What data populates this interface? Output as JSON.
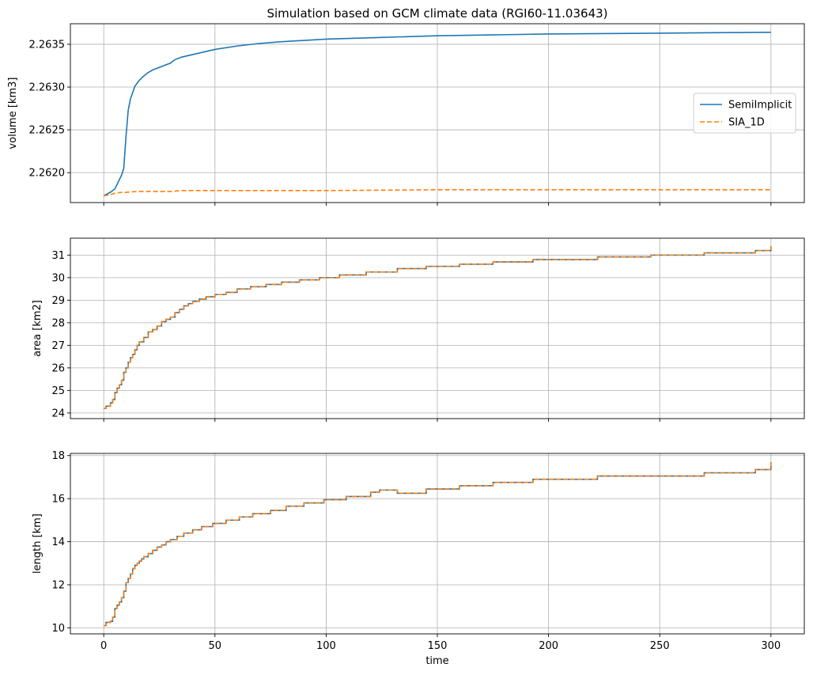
{
  "chart_data": {
    "type": "line",
    "title": "Simulation based on GCM climate data (RGI60-11.03643)",
    "xlabel": "time",
    "xlim": [
      -15,
      315
    ],
    "xticks": [
      0,
      50,
      100,
      150,
      200,
      250,
      300
    ],
    "xtick_labels": [
      "0",
      "50",
      "100",
      "150",
      "200",
      "250",
      "300"
    ],
    "grid": true,
    "colors": {
      "SemiImplicit": "#1f77b4",
      "SIA_1D": "#ff7f0e"
    },
    "panels": [
      {
        "id": "volume",
        "ylabel": "volume [km3]",
        "ylim": [
          2.26165,
          2.26374
        ],
        "yticks": [
          2.262,
          2.2625,
          2.263,
          2.2635
        ],
        "ytick_labels": [
          "2.2620",
          "2.2625",
          "2.2630",
          "2.2635"
        ],
        "legend": {
          "position": "center-right",
          "entries": [
            "SemiImplicit",
            "SIA_1D"
          ]
        },
        "series": [
          {
            "name": "SemiImplicit",
            "style": "solid",
            "x": [
              0,
              3,
              5,
              8,
              9,
              10,
              11,
              12,
              14,
              16,
              18,
              20,
              22,
              25,
              28,
              30,
              32,
              35,
              40,
              45,
              50,
              60,
              70,
              80,
              100,
              125,
              150,
              175,
              200,
              250,
              300
            ],
            "y": [
              2.26173,
              2.26177,
              2.26181,
              2.26197,
              2.26205,
              2.26242,
              2.26273,
              2.26286,
              2.26301,
              2.26308,
              2.26313,
              2.26317,
              2.2632,
              2.26323,
              2.26326,
              2.26328,
              2.26332,
              2.26335,
              2.26338,
              2.26341,
              2.26344,
              2.26348,
              2.26351,
              2.26353,
              2.26356,
              2.26358,
              2.2636,
              2.26361,
              2.26362,
              2.26363,
              2.26364
            ]
          },
          {
            "name": "SIA_1D",
            "style": "dashed",
            "x": [
              0,
              3,
              5,
              8,
              10,
              15,
              20,
              30,
              35,
              50,
              100,
              150,
              200,
              250,
              300
            ],
            "y": [
              2.26173,
              2.26174,
              2.26176,
              2.26177,
              2.26177,
              2.26178,
              2.26178,
              2.26178,
              2.26179,
              2.26179,
              2.26179,
              2.2618,
              2.2618,
              2.2618,
              2.2618
            ]
          }
        ]
      },
      {
        "id": "area",
        "ylabel": "area [km2]",
        "ylim": [
          23.75,
          31.75
        ],
        "yticks": [
          24,
          25,
          26,
          27,
          28,
          29,
          30,
          31
        ],
        "ytick_labels": [
          "24",
          "25",
          "26",
          "27",
          "28",
          "29",
          "30",
          "31"
        ],
        "series": [
          {
            "name": "SemiImplicit",
            "style": "solid",
            "stepped": true,
            "x": [
              0,
              1,
              3,
              4,
              5,
              6,
              7,
              8,
              9,
              10,
              11,
              12,
              13,
              14,
              15,
              16,
              18,
              20,
              22,
              24,
              26,
              28,
              30,
              32,
              34,
              36,
              38,
              40,
              43,
              46,
              50,
              55,
              60,
              66,
              73,
              80,
              88,
              97,
              106,
              118,
              132,
              145,
              160,
              175,
              193,
              222,
              246,
              270,
              293,
              300
            ],
            "y": [
              24.2,
              24.3,
              24.45,
              24.6,
              24.9,
              25.1,
              25.25,
              25.45,
              25.8,
              26.0,
              26.25,
              26.45,
              26.6,
              26.8,
              27.0,
              27.15,
              27.35,
              27.6,
              27.7,
              27.85,
              28.05,
              28.15,
              28.25,
              28.45,
              28.6,
              28.75,
              28.85,
              28.95,
              29.05,
              29.15,
              29.25,
              29.35,
              29.5,
              29.6,
              29.7,
              29.8,
              29.9,
              30.0,
              30.12,
              30.25,
              30.4,
              30.5,
              30.6,
              30.7,
              30.8,
              30.92,
              31.0,
              31.1,
              31.2,
              31.4
            ]
          },
          {
            "name": "SIA_1D",
            "style": "dashed",
            "stepped": true,
            "x": [
              0,
              1,
              3,
              4,
              5,
              6,
              7,
              8,
              9,
              10,
              11,
              12,
              13,
              14,
              15,
              16,
              18,
              20,
              22,
              24,
              26,
              28,
              30,
              32,
              34,
              36,
              38,
              40,
              43,
              46,
              50,
              55,
              60,
              66,
              73,
              80,
              88,
              97,
              106,
              118,
              132,
              145,
              160,
              175,
              193,
              222,
              246,
              270,
              293,
              300
            ],
            "y": [
              24.2,
              24.3,
              24.45,
              24.6,
              24.9,
              25.1,
              25.25,
              25.45,
              25.8,
              26.0,
              26.25,
              26.45,
              26.6,
              26.8,
              27.0,
              27.15,
              27.35,
              27.6,
              27.7,
              27.85,
              28.05,
              28.15,
              28.25,
              28.45,
              28.6,
              28.75,
              28.85,
              28.95,
              29.05,
              29.15,
              29.25,
              29.35,
              29.5,
              29.6,
              29.7,
              29.8,
              29.9,
              30.0,
              30.12,
              30.25,
              30.4,
              30.5,
              30.6,
              30.7,
              30.8,
              30.92,
              31.0,
              31.1,
              31.2,
              31.4
            ]
          }
        ]
      },
      {
        "id": "length",
        "ylabel": "length [km]",
        "ylim": [
          9.72,
          18.1
        ],
        "yticks": [
          10,
          12,
          14,
          16,
          18
        ],
        "ytick_labels": [
          "10",
          "12",
          "14",
          "16",
          "18"
        ],
        "series": [
          {
            "name": "SemiImplicit",
            "style": "solid",
            "stepped": true,
            "x": [
              0,
              1,
              3,
              4,
              5,
              6,
              7,
              8,
              9,
              10,
              11,
              12,
              13,
              14,
              15,
              16,
              17,
              18,
              20,
              22,
              24,
              26,
              28,
              30,
              33,
              36,
              40,
              44,
              49,
              55,
              61,
              67,
              75,
              82,
              90,
              99,
              109,
              120,
              124,
              132,
              145,
              160,
              175,
              193,
              222,
              246,
              270,
              293,
              300
            ],
            "y": [
              10.1,
              10.25,
              10.3,
              10.5,
              10.9,
              11.05,
              11.2,
              11.4,
              11.7,
              12.1,
              12.3,
              12.5,
              12.75,
              12.9,
              13.0,
              13.1,
              13.2,
              13.3,
              13.45,
              13.6,
              13.75,
              13.85,
              14.0,
              14.1,
              14.25,
              14.4,
              14.55,
              14.7,
              14.85,
              15.0,
              15.15,
              15.3,
              15.45,
              15.65,
              15.8,
              15.95,
              16.1,
              16.3,
              16.4,
              16.25,
              16.45,
              16.6,
              16.75,
              16.9,
              17.05,
              17.05,
              17.2,
              17.35,
              17.7
            ]
          },
          {
            "name": "SIA_1D",
            "style": "dashed",
            "stepped": true,
            "x": [
              0,
              1,
              3,
              4,
              5,
              6,
              7,
              8,
              9,
              10,
              11,
              12,
              13,
              14,
              15,
              16,
              17,
              18,
              20,
              22,
              24,
              26,
              28,
              30,
              33,
              36,
              40,
              44,
              49,
              55,
              61,
              67,
              75,
              82,
              90,
              99,
              109,
              120,
              124,
              132,
              145,
              160,
              175,
              193,
              222,
              246,
              270,
              293,
              300
            ],
            "y": [
              10.1,
              10.25,
              10.3,
              10.5,
              10.9,
              11.05,
              11.2,
              11.4,
              11.7,
              12.1,
              12.3,
              12.5,
              12.75,
              12.9,
              13.0,
              13.1,
              13.2,
              13.3,
              13.45,
              13.6,
              13.75,
              13.85,
              14.0,
              14.1,
              14.25,
              14.4,
              14.55,
              14.7,
              14.85,
              15.0,
              15.15,
              15.3,
              15.45,
              15.65,
              15.8,
              15.95,
              16.1,
              16.3,
              16.4,
              16.25,
              16.45,
              16.6,
              16.75,
              16.9,
              17.05,
              17.05,
              17.2,
              17.35,
              17.7
            ]
          }
        ]
      }
    ]
  }
}
